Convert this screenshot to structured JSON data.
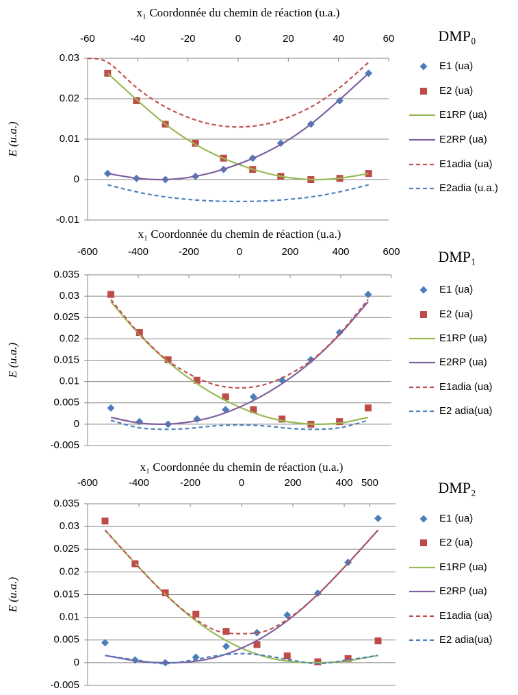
{
  "chart_data": [
    {
      "type": "line",
      "title": "DMP₀",
      "x_label": "x₁ Coordonnée du chemin de réaction (u.a.)",
      "y_label": "E (u.a.)",
      "xlim": [
        -60,
        60
      ],
      "xticks": [
        -60,
        -40,
        -20,
        0,
        20,
        40,
        60
      ],
      "ylim": [
        -0.01,
        0.03
      ],
      "yticks": [
        -0.01,
        0,
        0.01,
        0.02,
        0.03
      ],
      "grid": true,
      "legend": "right",
      "series": [
        {
          "name": "E1 (ua)",
          "color": "#4a7ebb",
          "marker": "diamond",
          "x": [
            -52,
            -40.5,
            -29,
            -17,
            -5.8,
            5.8,
            17,
            29,
            40.5,
            52
          ],
          "values": [
            0.0015,
            0.0003,
            0,
            0.0008,
            0.0025,
            0.0053,
            0.009,
            0.0137,
            0.0195,
            0.0263
          ]
        },
        {
          "name": "E2 (ua)",
          "color": "#be4b48",
          "marker": "square",
          "x": [
            -52,
            -40.5,
            -29,
            -17,
            -5.8,
            5.8,
            17,
            29,
            40.5,
            52
          ],
          "values": [
            0.0263,
            0.0195,
            0.0137,
            0.009,
            0.0053,
            0.0025,
            0.0008,
            0,
            0.0003,
            0.0015
          ]
        },
        {
          "name": "E1RP (ua)",
          "color": "#98b954",
          "line": "solid",
          "x": [
            -52,
            -40,
            -30,
            -20,
            -10,
            0,
            10,
            20,
            30,
            40,
            52
          ],
          "values": [
            0.0263,
            0.0195,
            0.0142,
            0.0098,
            0.0064,
            0.0038,
            0.0018,
            0.0005,
            0,
            0.0003,
            0.0015
          ]
        },
        {
          "name": "E2RP (ua)",
          "color": "#7d60a0",
          "line": "solid",
          "x": [
            -52,
            -40,
            -30,
            -20,
            -10,
            0,
            10,
            20,
            30,
            40,
            52
          ],
          "values": [
            0.0015,
            0.0003,
            0,
            0.0005,
            0.0018,
            0.0038,
            0.0064,
            0.0098,
            0.0142,
            0.0195,
            0.0263
          ]
        },
        {
          "name": "E1adia (ua)",
          "color": "#c0504d",
          "line": "dashed",
          "x": [
            -60,
            -52,
            -40,
            -30,
            -20,
            -10,
            0,
            10,
            20,
            30,
            40,
            52
          ],
          "values": [
            0.03,
            0.029,
            0.0225,
            0.0183,
            0.0154,
            0.0136,
            0.013,
            0.0136,
            0.0154,
            0.0183,
            0.0225,
            0.029
          ]
        },
        {
          "name": "E2adia (u.a.)",
          "color": "#4f81bd",
          "line": "dashed",
          "x": [
            -52,
            -40,
            -30,
            -20,
            -10,
            0,
            10,
            20,
            30,
            40,
            52
          ],
          "values": [
            -0.0013,
            -0.0031,
            -0.0042,
            -0.0049,
            -0.0053,
            -0.0054,
            -0.0053,
            -0.0049,
            -0.0042,
            -0.0031,
            -0.0013
          ]
        }
      ]
    },
    {
      "type": "line",
      "title": "DMP₁",
      "x_label": "x₁ Coordonnée du chemin de réaction (u.a.)",
      "y_label": "E (u.a.)",
      "xlim": [
        -600,
        600
      ],
      "xticks": [
        -600,
        -400,
        -200,
        0,
        200,
        400,
        600
      ],
      "ylim": [
        -0.005,
        0.035
      ],
      "yticks": [
        -0.005,
        0,
        0.005,
        0.01,
        0.015,
        0.02,
        0.025,
        0.03,
        0.035
      ],
      "grid": true,
      "legend": "right",
      "series": [
        {
          "name": "E1 (ua)",
          "color": "#4a7ebb",
          "marker": "diamond",
          "x": [
            -508,
            -395,
            -282,
            -168,
            -55,
            55,
            168,
            282,
            395,
            508
          ],
          "values": [
            0.0038,
            0.0006,
            0,
            0.0012,
            0.0034,
            0.0064,
            0.0103,
            0.0151,
            0.0215,
            0.0304
          ]
        },
        {
          "name": "E2 (ua)",
          "color": "#be4b48",
          "marker": "square",
          "x": [
            -508,
            -395,
            -282,
            -168,
            -55,
            55,
            168,
            282,
            395,
            508
          ],
          "values": [
            0.0304,
            0.0215,
            0.0151,
            0.0103,
            0.0064,
            0.0034,
            0.0012,
            0,
            0.0006,
            0.0038
          ]
        },
        {
          "name": "E1RP (ua)",
          "color": "#98b954",
          "line": "solid",
          "x": [
            -508,
            -400,
            -300,
            -200,
            -100,
            0,
            100,
            200,
            300,
            400,
            508
          ],
          "values": [
            0.0287,
            0.0213,
            0.0155,
            0.0108,
            0.007,
            0.004,
            0.0018,
            0.0005,
            0,
            0.0003,
            0.0016
          ]
        },
        {
          "name": "E2RP (ua)",
          "color": "#7d60a0",
          "line": "solid",
          "x": [
            -508,
            -400,
            -300,
            -200,
            -100,
            0,
            100,
            200,
            300,
            400,
            508
          ],
          "values": [
            0.0016,
            0.0003,
            0,
            0.0005,
            0.0018,
            0.004,
            0.007,
            0.0108,
            0.0155,
            0.0213,
            0.0287
          ]
        },
        {
          "name": "E1adia (ua)",
          "color": "#c0504d",
          "line": "dashed",
          "x": [
            -508,
            -400,
            -300,
            -200,
            -100,
            0,
            100,
            200,
            300,
            400,
            508
          ],
          "values": [
            0.0292,
            0.0215,
            0.0157,
            0.0118,
            0.0093,
            0.0085,
            0.0093,
            0.0118,
            0.0157,
            0.0215,
            0.0292
          ]
        },
        {
          "name": "E2 adia(ua)",
          "color": "#4f81bd",
          "line": "dashed",
          "x": [
            -508,
            -400,
            -300,
            -200,
            -100,
            0,
            100,
            200,
            300,
            400,
            508
          ],
          "values": [
            0.0009,
            -0.0008,
            -0.0012,
            -0.001,
            -0.0004,
            -0.0002,
            -0.0004,
            -0.001,
            -0.0012,
            -0.0008,
            0.0009
          ]
        }
      ]
    },
    {
      "type": "line",
      "title": "DMP₂",
      "x_label": "x₁ Coordonnée du chemin de réaction (u.a.)",
      "y_label": "E (u.a.)",
      "xlim": [
        -600,
        600
      ],
      "xticks": [
        -600,
        -400,
        -200,
        0,
        200,
        400,
        500
      ],
      "ylim": [
        -0.005,
        0.035
      ],
      "yticks": [
        -0.005,
        0,
        0.005,
        0.01,
        0.015,
        0.02,
        0.025,
        0.03,
        0.035
      ],
      "grid": true,
      "legend": "right",
      "series": [
        {
          "name": "E1 (ua)",
          "color": "#4a7ebb",
          "marker": "diamond",
          "x": [
            -532,
            -415,
            -297,
            -178,
            -60,
            60,
            178,
            297,
            415,
            532
          ],
          "values": [
            0.0044,
            0.0006,
            0,
            0.0012,
            0.0036,
            0.0066,
            0.0105,
            0.0153,
            0.0221,
            0.0318
          ]
        },
        {
          "name": "E2 (ua)",
          "color": "#be4b48",
          "marker": "square",
          "x": [
            -532,
            -415,
            -297,
            -178,
            -60,
            60,
            178,
            297,
            415,
            532
          ],
          "values": [
            0.0312,
            0.0218,
            0.0154,
            0.0107,
            0.0069,
            0.004,
            0.0015,
            0.0002,
            0.0009,
            0.0048
          ]
        },
        {
          "name": "E1RP (ua)",
          "color": "#98b954",
          "line": "solid",
          "x": [
            -532,
            -400,
            -300,
            -200,
            -100,
            0,
            100,
            200,
            300,
            400,
            532
          ],
          "values": [
            0.0292,
            0.021,
            0.0152,
            0.0102,
            0.0062,
            0.0032,
            0.0012,
            0.0002,
            0,
            0.0003,
            0.0016
          ]
        },
        {
          "name": "E2RP (ua)",
          "color": "#7d60a0",
          "line": "solid",
          "x": [
            -532,
            -400,
            -300,
            -200,
            -100,
            0,
            100,
            200,
            300,
            400,
            532
          ],
          "values": [
            0.0016,
            0.0003,
            0,
            0.0002,
            0.0012,
            0.0032,
            0.0062,
            0.0102,
            0.0152,
            0.021,
            0.0292
          ]
        },
        {
          "name": "E1adia (ua)",
          "color": "#c0504d",
          "line": "dashed",
          "x": [
            -532,
            -400,
            -300,
            -200,
            -100,
            0,
            100,
            200,
            300,
            400,
            532
          ],
          "values": [
            0.0292,
            0.021,
            0.0152,
            0.0104,
            0.0071,
            0.0064,
            0.0071,
            0.0104,
            0.0152,
            0.021,
            0.0292
          ]
        },
        {
          "name": "E2 adia(ua)",
          "color": "#4f81bd",
          "line": "dashed",
          "x": [
            -532,
            -400,
            -300,
            -200,
            -100,
            0,
            100,
            200,
            300,
            400,
            532
          ],
          "values": [
            0.0016,
            0.0005,
            -0.0002,
            0.0005,
            0.0015,
            0.002,
            0.0015,
            0.0005,
            -0.0002,
            0.0005,
            0.0016
          ]
        }
      ]
    }
  ]
}
